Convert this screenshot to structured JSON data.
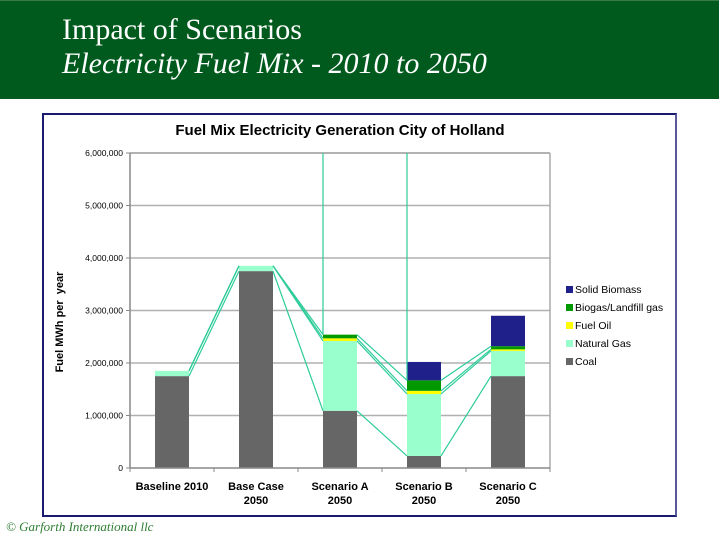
{
  "header": {
    "title": "Impact of Scenarios",
    "subtitle": "Electricity Fuel Mix - 2010 to 2050",
    "background_color": "#005a1e"
  },
  "footer": {
    "copyright": "© Garforth International llc"
  },
  "chart_data": {
    "type": "bar",
    "stacked": true,
    "title": "Fuel Mix Electricity Generation City of Holland",
    "xlabel": "",
    "ylabel": "Fuel MWh per  year",
    "ylim": [
      0,
      6000000
    ],
    "yticks": [
      0,
      1000000,
      2000000,
      3000000,
      4000000,
      5000000,
      6000000
    ],
    "ytick_labels": [
      "0",
      "1,000,000",
      "2,000,000",
      "3,000,000",
      "4,000,000",
      "5,000,000",
      "6,000,000"
    ],
    "grid": true,
    "legend_position": "right",
    "series_lines": true,
    "categories": [
      [
        "Baseline 2010"
      ],
      [
        "Base Case",
        "2050"
      ],
      [
        "Scenario A",
        "2050"
      ],
      [
        "Scenario B",
        "2050"
      ],
      [
        "Scenario C",
        "2050"
      ]
    ],
    "series": [
      {
        "name": "Coal",
        "color": "#666666",
        "values": [
          1750000,
          3750000,
          1090000,
          230000,
          1750000
        ]
      },
      {
        "name": "Natural Gas",
        "color": "#99ffcc",
        "values": [
          100000,
          100000,
          1330000,
          1180000,
          480000
        ]
      },
      {
        "name": "Fuel Oil",
        "color": "#ffff00",
        "values": [
          0,
          0,
          50000,
          60000,
          30000
        ]
      },
      {
        "name": "Biogas/Landfill gas",
        "color": "#009900",
        "values": [
          0,
          0,
          70000,
          200000,
          60000
        ]
      },
      {
        "name": "Solid Biomass",
        "color": "#20208a",
        "values": [
          0,
          0,
          0,
          350000,
          580000
        ]
      }
    ],
    "series_line_color": "#2ecc9a"
  }
}
